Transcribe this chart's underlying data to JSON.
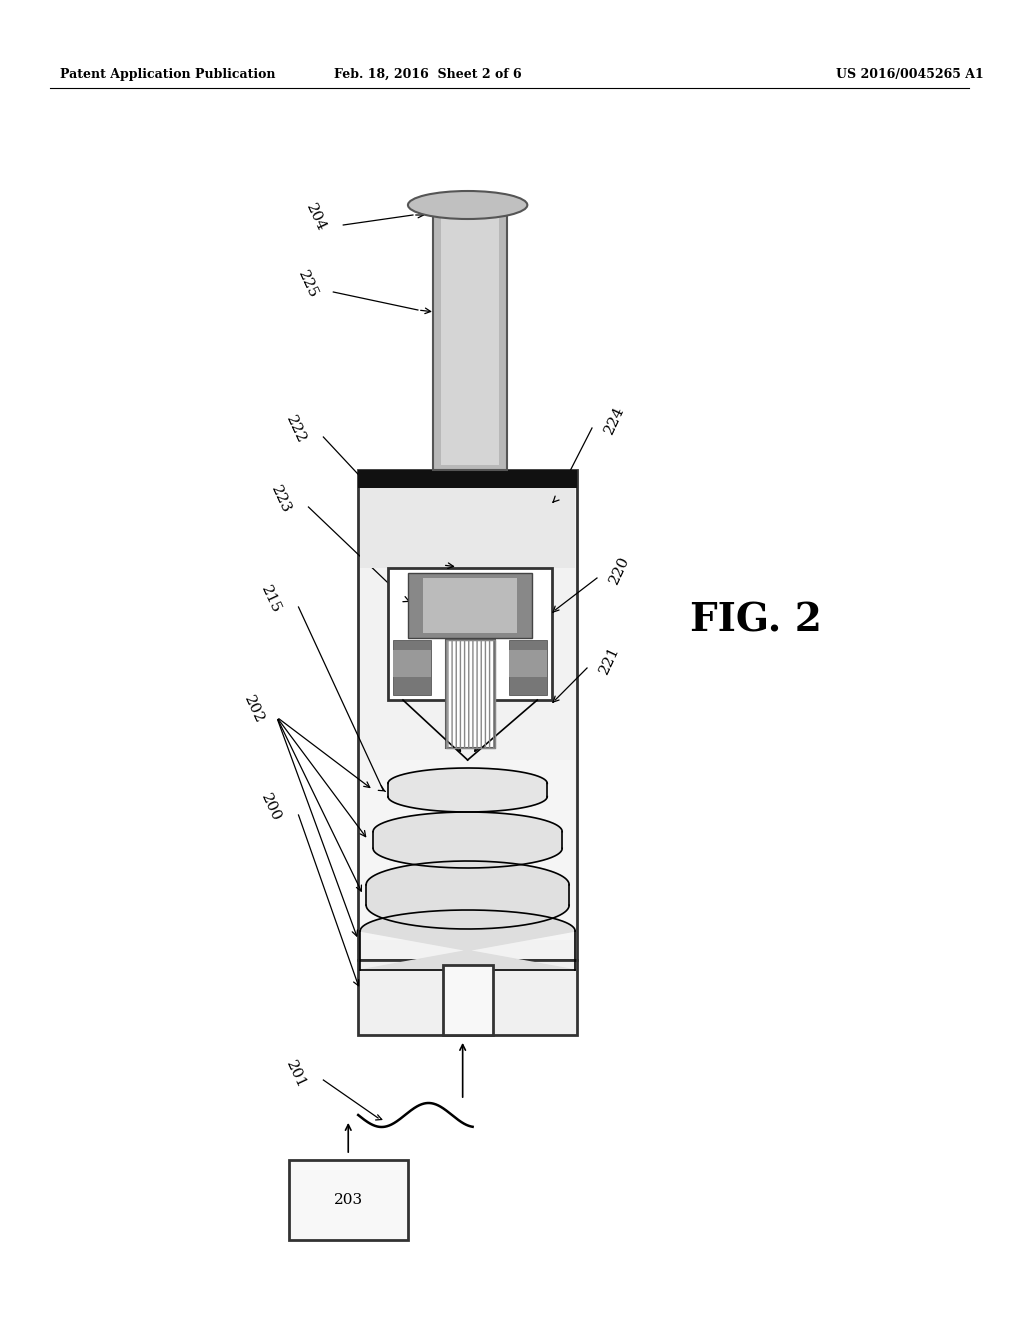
{
  "header_left": "Patent Application Publication",
  "header_center": "Feb. 18, 2016  Sheet 2 of 6",
  "header_right": "US 2016/0045265 A1",
  "fig_label": "FIG. 2",
  "bg_color": "#ffffff"
}
